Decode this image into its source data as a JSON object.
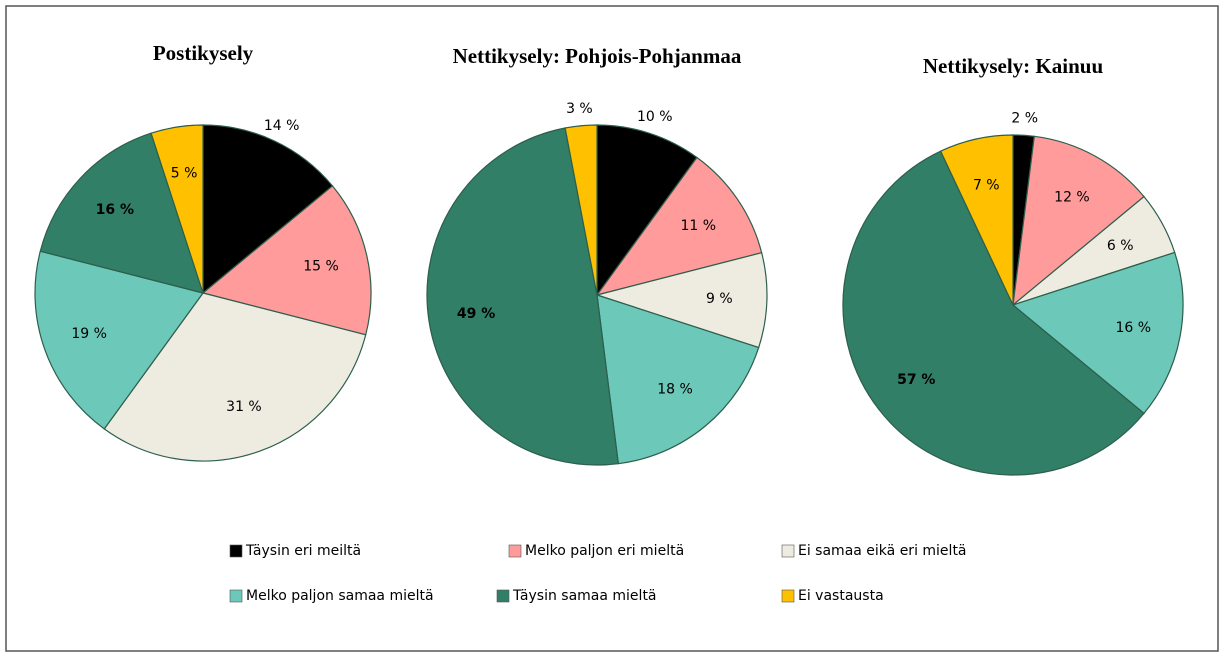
{
  "chart_data": [
    {
      "type": "pie",
      "title": "Postikysely",
      "values": [
        14,
        15,
        31,
        19,
        16,
        5
      ],
      "value_labels": [
        "14 %",
        "15 %",
        "31 %",
        "19 %",
        "16 %",
        "5 %"
      ]
    },
    {
      "type": "pie",
      "title": "Nettikysely: Pohjois-Pohjanmaa",
      "values": [
        10,
        11,
        9,
        18,
        49,
        3
      ],
      "value_labels": [
        "10 %",
        "11 %",
        "9 %",
        "18 %",
        "49 %",
        "3 %"
      ]
    },
    {
      "type": "pie",
      "title": "Nettikysely: Kainuu",
      "values": [
        2,
        12,
        6,
        16,
        57,
        7
      ],
      "value_labels": [
        "2 %",
        "12 %",
        "6 %",
        "16 %",
        "57 %",
        "7 %"
      ]
    }
  ],
  "legend": {
    "labels": [
      "Täysin eri meiltä",
      "Melko paljon eri mieltä",
      "Ei samaa eikä eri mieltä",
      "Melko paljon samaa mieltä",
      "Täysin samaa mieltä",
      "Ei vastausta"
    ],
    "colors": [
      "#000000",
      "#ff9b9b",
      "#eeece1",
      "#6cc8b8",
      "#317f66",
      "#ffc000"
    ]
  }
}
